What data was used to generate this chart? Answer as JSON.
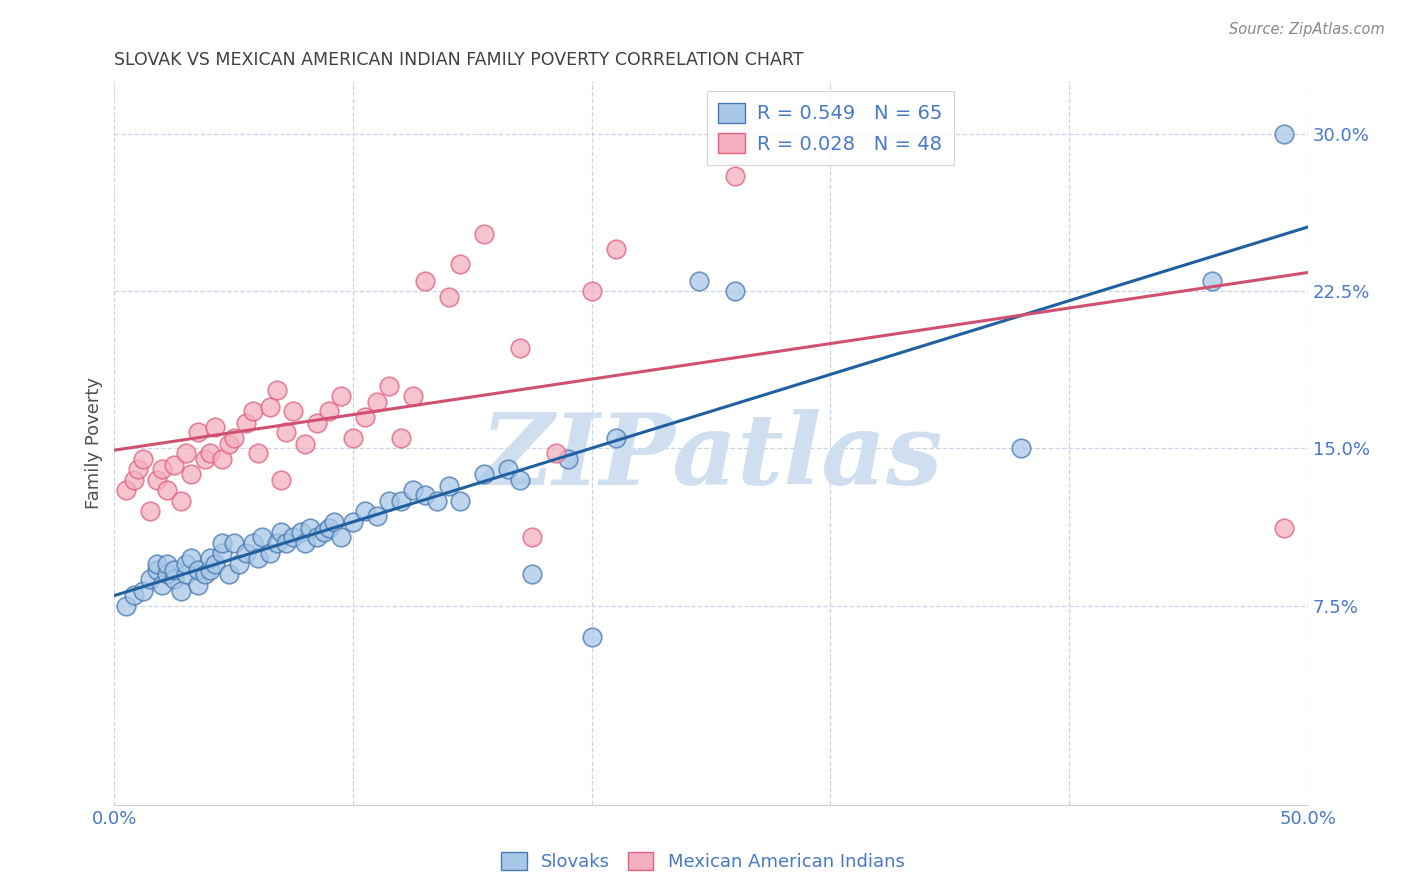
{
  "title": "SLOVAK VS MEXICAN AMERICAN INDIAN FAMILY POVERTY CORRELATION CHART",
  "source": "Source: ZipAtlas.com",
  "ylabel": "Family Poverty",
  "xlim": [
    0.0,
    0.5
  ],
  "ylim": [
    -0.02,
    0.325
  ],
  "xtick_vals": [
    0.0,
    0.1,
    0.2,
    0.3,
    0.4,
    0.5
  ],
  "xtick_labels": [
    "0.0%",
    "",
    "",
    "",
    "",
    "50.0%"
  ],
  "ytick_vals": [
    0.075,
    0.15,
    0.225,
    0.3
  ],
  "ytick_labels": [
    "7.5%",
    "15.0%",
    "22.5%",
    "30.0%"
  ],
  "legend_labels": [
    "Slovaks",
    "Mexican American Indians"
  ],
  "slovak_color": "#a8c8e8",
  "mexican_color": "#f4b0c0",
  "slovak_edge_color": "#4878b0",
  "mexican_edge_color": "#e06080",
  "slovak_line_color": "#2060a0",
  "mexican_line_color": "#d05070",
  "watermark": "ZIPatlas",
  "watermark_color": "#d0dff0",
  "background_color": "#ffffff",
  "grid_color": "#c8d4e8",
  "title_color": "#404040",
  "source_color": "#888888",
  "tick_color": "#4878c8",
  "ylabel_color": "#505050",
  "slovak_x": [
    0.005,
    0.008,
    0.012,
    0.015,
    0.018,
    0.018,
    0.02,
    0.022,
    0.022,
    0.025,
    0.025,
    0.028,
    0.03,
    0.03,
    0.032,
    0.035,
    0.035,
    0.038,
    0.04,
    0.04,
    0.042,
    0.045,
    0.045,
    0.048,
    0.05,
    0.052,
    0.055,
    0.058,
    0.06,
    0.062,
    0.065,
    0.068,
    0.07,
    0.072,
    0.075,
    0.078,
    0.08,
    0.082,
    0.085,
    0.088,
    0.09,
    0.092,
    0.095,
    0.1,
    0.105,
    0.11,
    0.115,
    0.12,
    0.125,
    0.13,
    0.135,
    0.14,
    0.145,
    0.155,
    0.165,
    0.17,
    0.175,
    0.19,
    0.2,
    0.21,
    0.245,
    0.26,
    0.38,
    0.46,
    0.49
  ],
  "slovak_y": [
    0.075,
    0.08,
    0.082,
    0.088,
    0.092,
    0.095,
    0.085,
    0.09,
    0.095,
    0.088,
    0.092,
    0.082,
    0.09,
    0.095,
    0.098,
    0.085,
    0.092,
    0.09,
    0.092,
    0.098,
    0.095,
    0.1,
    0.105,
    0.09,
    0.105,
    0.095,
    0.1,
    0.105,
    0.098,
    0.108,
    0.1,
    0.105,
    0.11,
    0.105,
    0.108,
    0.11,
    0.105,
    0.112,
    0.108,
    0.11,
    0.112,
    0.115,
    0.108,
    0.115,
    0.12,
    0.118,
    0.125,
    0.125,
    0.13,
    0.128,
    0.125,
    0.132,
    0.125,
    0.138,
    0.14,
    0.135,
    0.09,
    0.145,
    0.06,
    0.155,
    0.23,
    0.225,
    0.15,
    0.23,
    0.3
  ],
  "mexican_x": [
    0.005,
    0.008,
    0.01,
    0.012,
    0.015,
    0.018,
    0.02,
    0.022,
    0.025,
    0.028,
    0.03,
    0.032,
    0.035,
    0.038,
    0.04,
    0.042,
    0.045,
    0.048,
    0.05,
    0.055,
    0.058,
    0.06,
    0.065,
    0.068,
    0.07,
    0.072,
    0.075,
    0.08,
    0.085,
    0.09,
    0.095,
    0.1,
    0.105,
    0.11,
    0.115,
    0.12,
    0.125,
    0.13,
    0.14,
    0.145,
    0.155,
    0.17,
    0.175,
    0.185,
    0.2,
    0.21,
    0.26,
    0.49
  ],
  "mexican_y": [
    0.13,
    0.135,
    0.14,
    0.145,
    0.12,
    0.135,
    0.14,
    0.13,
    0.142,
    0.125,
    0.148,
    0.138,
    0.158,
    0.145,
    0.148,
    0.16,
    0.145,
    0.152,
    0.155,
    0.162,
    0.168,
    0.148,
    0.17,
    0.178,
    0.135,
    0.158,
    0.168,
    0.152,
    0.162,
    0.168,
    0.175,
    0.155,
    0.165,
    0.172,
    0.18,
    0.155,
    0.175,
    0.23,
    0.222,
    0.238,
    0.252,
    0.198,
    0.108,
    0.148,
    0.225,
    0.245,
    0.28,
    0.112
  ]
}
